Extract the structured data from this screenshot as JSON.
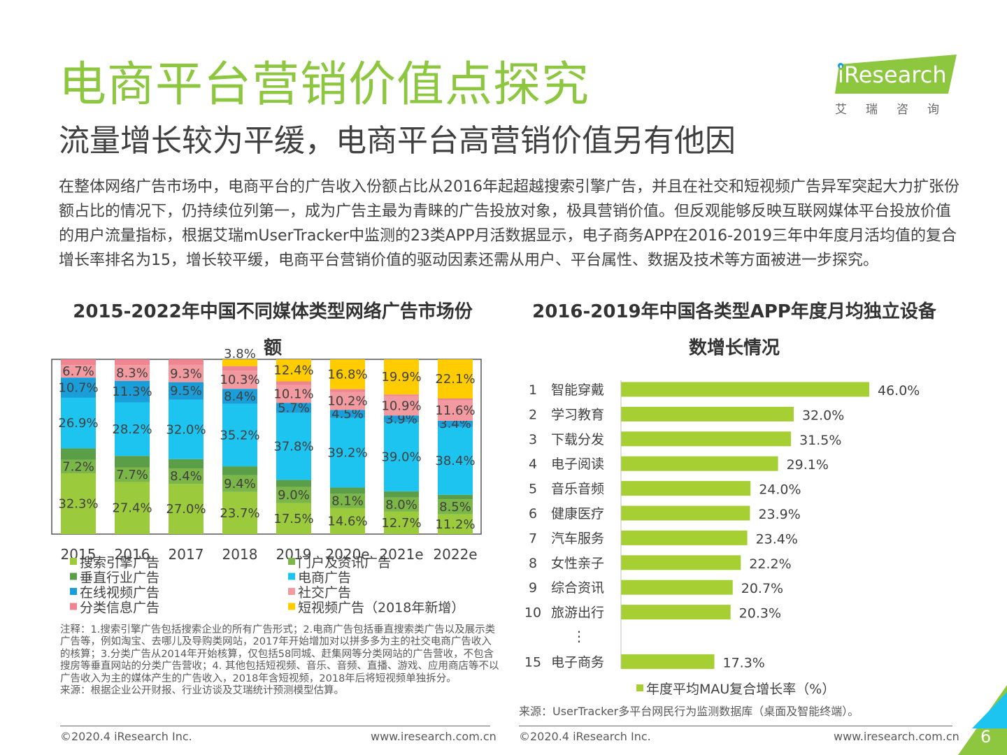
{
  "header": {
    "title": "电商平台营销价值点探究",
    "subtitle": "流量增长较为平缓，电商平台高营销价值另有他因",
    "logo_text": "iResearch",
    "logo_cn": "艾瑞咨询"
  },
  "intro": "在整体网络广告市场中，电商平台的广告收入份额占比从2016年起超越搜索引擎广告，并且在社交和短视频广告异军突起大力扩张份额占比的情况下，仍持续位列第一，成为广告主最为青睐的广告投放对象，极具营销价值。但反观能够反映互联网媒体平台投放价值的用户流量指标，根据艾瑞mUserTracker中监测的23类APP月活数据显示，电子商务APP在2016-2019三年中年度月活均值的复合增长率排名为15，增长较平缓，电商平台营销价值的驱动因素还需从用户、平台属性、数据及技术等方面被进一步探究。",
  "colors": {
    "green_title": "#8dc63f",
    "search": "#9bcb3c",
    "portal": "#7ab648",
    "vertical": "#5a9e47",
    "ecommerce": "#1ec4f0",
    "video": "#1a9ed9",
    "social": "#f29aa0",
    "classified": "#ef8591",
    "short_video": "#ffcc00",
    "mau_bar": "#a5cf32"
  },
  "chart_data": [
    {
      "type": "bar",
      "stacked": true,
      "title": "2015-2022年中国不同媒体类型网络广告市场份额",
      "categories": [
        "2015",
        "2016",
        "2017",
        "2018",
        "2019",
        "2020e",
        "2021e",
        "2022e"
      ],
      "unit": "%",
      "series": [
        {
          "name": "搜索引擎广告",
          "color_key": "search",
          "values": [
            32.3,
            27.4,
            27.0,
            23.7,
            17.5,
            14.6,
            12.7,
            11.2
          ],
          "labels": [
            "32.3%",
            "27.4%",
            "27.0%",
            "23.7%",
            "17.5%",
            "14.6%",
            "12.7%",
            "11.2%"
          ]
        },
        {
          "name": "门户及资讯广告",
          "color_key": "portal",
          "values": [
            7.2,
            7.7,
            8.4,
            9.4,
            9.0,
            8.1,
            8.0,
            8.5
          ],
          "labels": [
            "7.2%",
            "7.7%",
            "8.4%",
            "9.4%",
            "9.0%",
            "8.1%",
            "8.0%",
            "8.5%"
          ]
        },
        {
          "name": "垂直行业广告",
          "color_key": "vertical",
          "values": [
            6.0,
            6.0,
            5.0,
            5.0,
            4.0,
            3.5,
            3.5,
            2.5
          ],
          "labels": []
        },
        {
          "name": "电商广告",
          "color_key": "ecommerce",
          "values": [
            26.9,
            28.2,
            32.0,
            35.2,
            37.8,
            39.2,
            39.0,
            38.4
          ],
          "labels": [
            "26.9%",
            "28.2%",
            "32.0%",
            "35.2%",
            "37.8%",
            "39.2%",
            "39.0%",
            "38.4%"
          ]
        },
        {
          "name": "在线视频广告",
          "color_key": "video",
          "values": [
            10.7,
            11.3,
            9.5,
            8.4,
            5.7,
            4.5,
            3.9,
            3.4
          ],
          "labels": [
            "10.7%",
            "11.3%",
            "9.5%",
            "8.4%",
            "5.7%",
            "4.5%",
            "3.9%",
            "3.4%"
          ]
        },
        {
          "name": "社交广告",
          "color_key": "social",
          "values": [
            6.7,
            8.3,
            9.3,
            10.3,
            10.1,
            10.2,
            10.9,
            11.6
          ],
          "labels": [
            "6.7%",
            "8.3%",
            "9.3%",
            "10.3%",
            "10.1%",
            "10.2%",
            "10.9%",
            "11.6%"
          ]
        },
        {
          "name": "分类信息广告",
          "color_key": "classified",
          "values": [
            3.0,
            3.0,
            3.0,
            2.5,
            2.0,
            1.5,
            1.0,
            1.0
          ],
          "labels": []
        },
        {
          "name": "短视频广告（2018年新增）",
          "color_key": "short_video",
          "values": [
            0,
            0,
            0,
            3.8,
            12.4,
            16.8,
            19.9,
            22.1
          ],
          "labels": [
            "",
            "",
            "",
            "3.8%",
            "12.4%",
            "16.8%",
            "19.9%",
            "22.1%"
          ]
        }
      ],
      "legend_columns": [
        [
          "搜索引擎广告",
          "垂直行业广告",
          "在线视频广告",
          "分类信息广告"
        ],
        [
          "门户及资讯广告",
          "电商广告",
          "社交广告",
          "短视频广告（2018年新增）"
        ]
      ],
      "legend_placement": "bottom"
    },
    {
      "type": "bar",
      "orientation": "horizontal",
      "title": "2016-2019年中国各类型APP年度月均独立设备数增长情况",
      "ranks": [
        "1",
        "2",
        "3",
        "4",
        "5",
        "6",
        "7",
        "8",
        "9",
        "10",
        "⋮",
        "15"
      ],
      "categories": [
        "智能穿戴",
        "学习教育",
        "下载分发",
        "电子阅读",
        "音乐音频",
        "健康医疗",
        "汽车服务",
        "女性亲子",
        "综合资讯",
        "旅游出行",
        "",
        "电子商务"
      ],
      "values": [
        46.0,
        32.0,
        31.5,
        29.1,
        24.0,
        23.9,
        23.4,
        22.2,
        20.7,
        20.3,
        null,
        17.3
      ],
      "labels": [
        "46.0%",
        "32.0%",
        "31.5%",
        "29.1%",
        "24.0%",
        "23.9%",
        "23.4%",
        "22.2%",
        "20.7%",
        "20.3%",
        "",
        "17.3%"
      ],
      "legend": "年度平均MAU复合增长率（%）",
      "xlim": [
        0,
        46
      ]
    }
  ],
  "notes": {
    "left": "注释：1.搜索引擎广告包括搜索企业的所有广告形式；2.电商广告包括垂直搜索类广告以及展示类广告等，例如淘宝、去哪儿及导购类网站，2017年开始增加对以拼多多为主的社交电商广告收入的核算；3.分类广告从2014年开始核算，仅包括58同城、赶集网等分类网站的广告营收，不包含搜房等垂直网站的分类广告营收；4. 其他包括短视频、音乐、音频、直播、游戏、应用商店等不以广告收入为主的媒体产生的广告收入，2018年含短视频，2018年后将短视频单独拆分。",
    "left_source": "来源：根据企业公开财报、行业访谈及艾瑞统计预测模型估算。",
    "right_source": "来源：UserTracker多平台网民行为监测数据库（桌面及智能终端）。"
  },
  "footer": {
    "copyright_left": "©2020.4 iResearch Inc.",
    "url_left": "www.iresearch.com.cn",
    "copyright_right": "©2020.4 iResearch Inc.",
    "url_right": "www.iresearch.com.cn",
    "page": "6"
  }
}
